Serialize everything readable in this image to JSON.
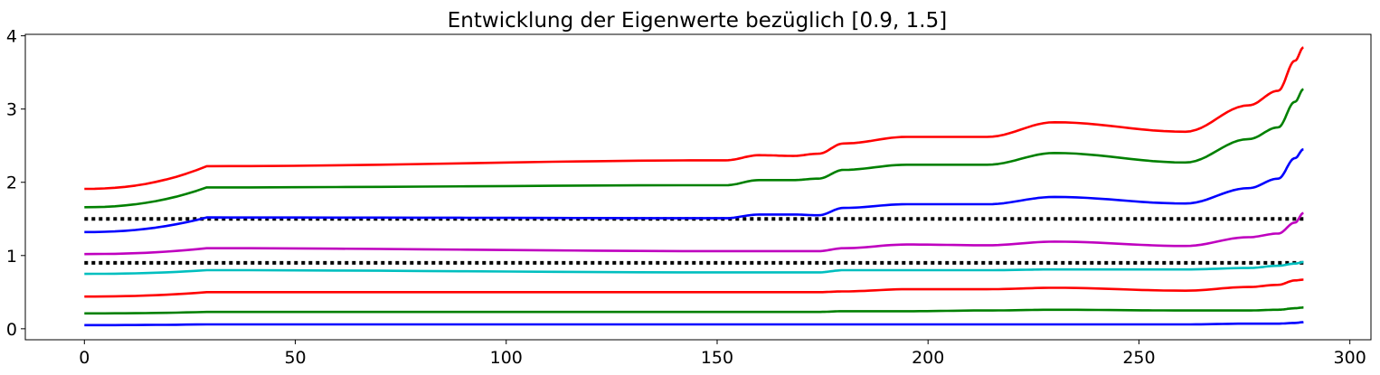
{
  "chart_data": {
    "type": "line",
    "title": "Entwicklung der Eigenwerte bezüglich [0.9, 1.5]",
    "xlabel": "",
    "ylabel": "",
    "xlim": [
      -14,
      305
    ],
    "ylim": [
      -0.15,
      4.02
    ],
    "xticks": [
      0,
      50,
      100,
      150,
      200,
      250,
      300
    ],
    "yticks": [
      0,
      1,
      2,
      3,
      4
    ],
    "grid": false,
    "legend": "none",
    "segment_breaks": [
      0,
      29,
      152,
      160,
      168,
      174,
      180,
      195,
      214,
      230,
      261,
      276,
      283,
      287,
      289
    ],
    "reference_lines": [
      {
        "y": 1.5,
        "style": "dotted",
        "color": "#000000"
      },
      {
        "y": 0.9,
        "style": "dotted",
        "color": "#000000"
      }
    ],
    "series": [
      {
        "color": "#0000ff",
        "values": [
          0.05,
          0.06,
          0.06,
          0.06,
          0.06,
          0.06,
          0.06,
          0.06,
          0.06,
          0.06,
          0.06,
          0.07,
          0.07,
          0.08,
          0.09
        ]
      },
      {
        "color": "#008000",
        "values": [
          0.21,
          0.23,
          0.23,
          0.23,
          0.23,
          0.23,
          0.24,
          0.24,
          0.25,
          0.26,
          0.25,
          0.25,
          0.26,
          0.28,
          0.29
        ]
      },
      {
        "color": "#ff0000",
        "values": [
          0.44,
          0.5,
          0.5,
          0.5,
          0.5,
          0.5,
          0.51,
          0.54,
          0.54,
          0.56,
          0.52,
          0.57,
          0.6,
          0.66,
          0.67
        ]
      },
      {
        "color": "#00bfbf",
        "values": [
          0.75,
          0.8,
          0.77,
          0.77,
          0.77,
          0.77,
          0.8,
          0.8,
          0.8,
          0.81,
          0.81,
          0.83,
          0.86,
          0.89,
          0.91
        ]
      },
      {
        "color": "#bf00bf",
        "values": [
          1.02,
          1.1,
          1.06,
          1.06,
          1.06,
          1.06,
          1.1,
          1.15,
          1.14,
          1.19,
          1.13,
          1.25,
          1.3,
          1.45,
          1.58
        ]
      },
      {
        "color": "#0000ff",
        "values": [
          1.32,
          1.52,
          1.51,
          1.56,
          1.56,
          1.55,
          1.65,
          1.7,
          1.7,
          1.8,
          1.71,
          1.92,
          2.05,
          2.33,
          2.45
        ]
      },
      {
        "color": "#008000",
        "values": [
          1.66,
          1.93,
          1.96,
          2.03,
          2.03,
          2.05,
          2.17,
          2.24,
          2.24,
          2.4,
          2.27,
          2.59,
          2.75,
          3.1,
          3.27
        ]
      },
      {
        "color": "#ff0000",
        "values": [
          1.91,
          2.22,
          2.3,
          2.37,
          2.36,
          2.39,
          2.53,
          2.62,
          2.62,
          2.82,
          2.69,
          3.05,
          3.25,
          3.66,
          3.84
        ]
      }
    ]
  }
}
